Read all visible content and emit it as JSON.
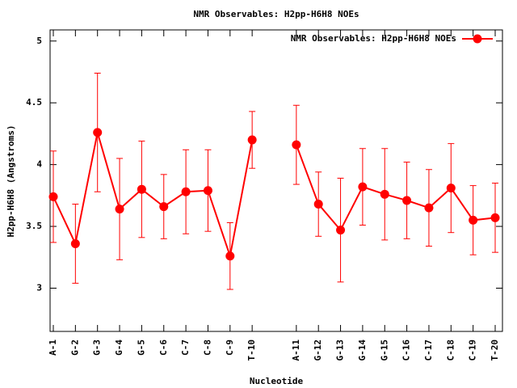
{
  "chart_data": {
    "type": "line",
    "title": "NMR Observables: H2pp-H6H8 NOEs",
    "xlabel": "Nucleotide",
    "ylabel": "H2pp-H6H8 (Angstroms)",
    "categories": [
      "A-1",
      "G-2",
      "G-3",
      "G-4",
      "G-5",
      "C-6",
      "C-7",
      "C-8",
      "C-9",
      "T-10",
      null,
      "A-11",
      "G-12",
      "G-13",
      "G-14",
      "G-15",
      "C-16",
      "C-17",
      "C-18",
      "C-19",
      "T-20"
    ],
    "series": [
      {
        "name": "NMR Observables: H2pp-H6H8 NOEs",
        "color": "#ff0000",
        "values": [
          3.74,
          3.36,
          4.26,
          3.64,
          3.8,
          3.66,
          3.78,
          3.79,
          3.26,
          4.2,
          null,
          4.16,
          3.68,
          3.47,
          3.82,
          3.76,
          3.71,
          3.65,
          3.81,
          3.55,
          3.57
        ],
        "errors": [
          0.37,
          0.32,
          0.48,
          0.41,
          0.39,
          0.26,
          0.34,
          0.33,
          0.27,
          0.23,
          null,
          0.32,
          0.26,
          0.42,
          0.31,
          0.37,
          0.31,
          0.31,
          0.36,
          0.28,
          0.28
        ]
      }
    ],
    "ylim": [
      2.65,
      5.09
    ],
    "yticks": [
      3,
      3.5,
      4,
      4.5,
      5
    ],
    "legend": "upper right"
  }
}
